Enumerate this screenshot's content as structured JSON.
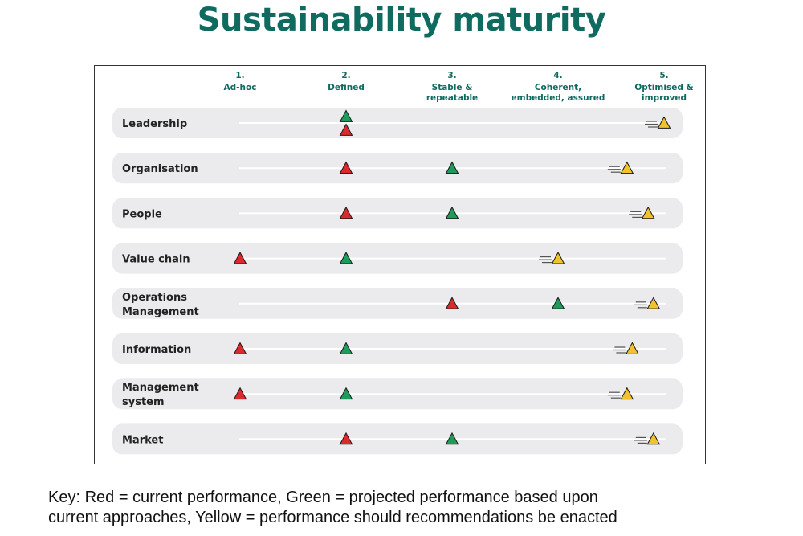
{
  "title": "Sustainability maturity",
  "chart_data": {
    "type": "scatter",
    "title": "Sustainability maturity",
    "levels": [
      {
        "num": "1.",
        "lines": [
          "Ad-hoc"
        ]
      },
      {
        "num": "2.",
        "lines": [
          "Defined"
        ]
      },
      {
        "num": "3.",
        "lines": [
          "Stable &",
          "repeatable"
        ]
      },
      {
        "num": "4.",
        "lines": [
          "Coherent,",
          "embedded, assured"
        ]
      },
      {
        "num": "5.",
        "lines": [
          "Optimised &",
          "improved"
        ]
      }
    ],
    "series": [
      {
        "name": "current performance",
        "color": "#d92b2b"
      },
      {
        "name": "projected performance",
        "color": "#1e9a5a"
      },
      {
        "name": "performance with recommendations",
        "color": "#f2c12e"
      }
    ],
    "rows": [
      {
        "lines": [
          "Leadership"
        ],
        "red": 2,
        "green": 2,
        "yellow": 5.0
      },
      {
        "lines": [
          "Organisation"
        ],
        "red": 2,
        "green": 3,
        "yellow": 4.65
      },
      {
        "lines": [
          "People"
        ],
        "red": 2,
        "green": 3,
        "yellow": 4.85
      },
      {
        "lines": [
          "Value chain"
        ],
        "red": 1,
        "green": 2,
        "yellow": 4.0
      },
      {
        "lines": [
          "Operations",
          "Management"
        ],
        "red": 3,
        "green": 4,
        "yellow": 4.9
      },
      {
        "lines": [
          "Information"
        ],
        "red": 1,
        "green": 2,
        "yellow": 4.7
      },
      {
        "lines": [
          "Management",
          "system"
        ],
        "red": 1,
        "green": 2,
        "yellow": 4.65
      },
      {
        "lines": [
          "Market"
        ],
        "red": 2,
        "green": 3,
        "yellow": 4.9
      }
    ]
  },
  "key": {
    "line1": "Key: Red = current performance, Green = projected performance based upon",
    "line2": "current approaches, Yellow = performance should recommendations be enacted"
  }
}
